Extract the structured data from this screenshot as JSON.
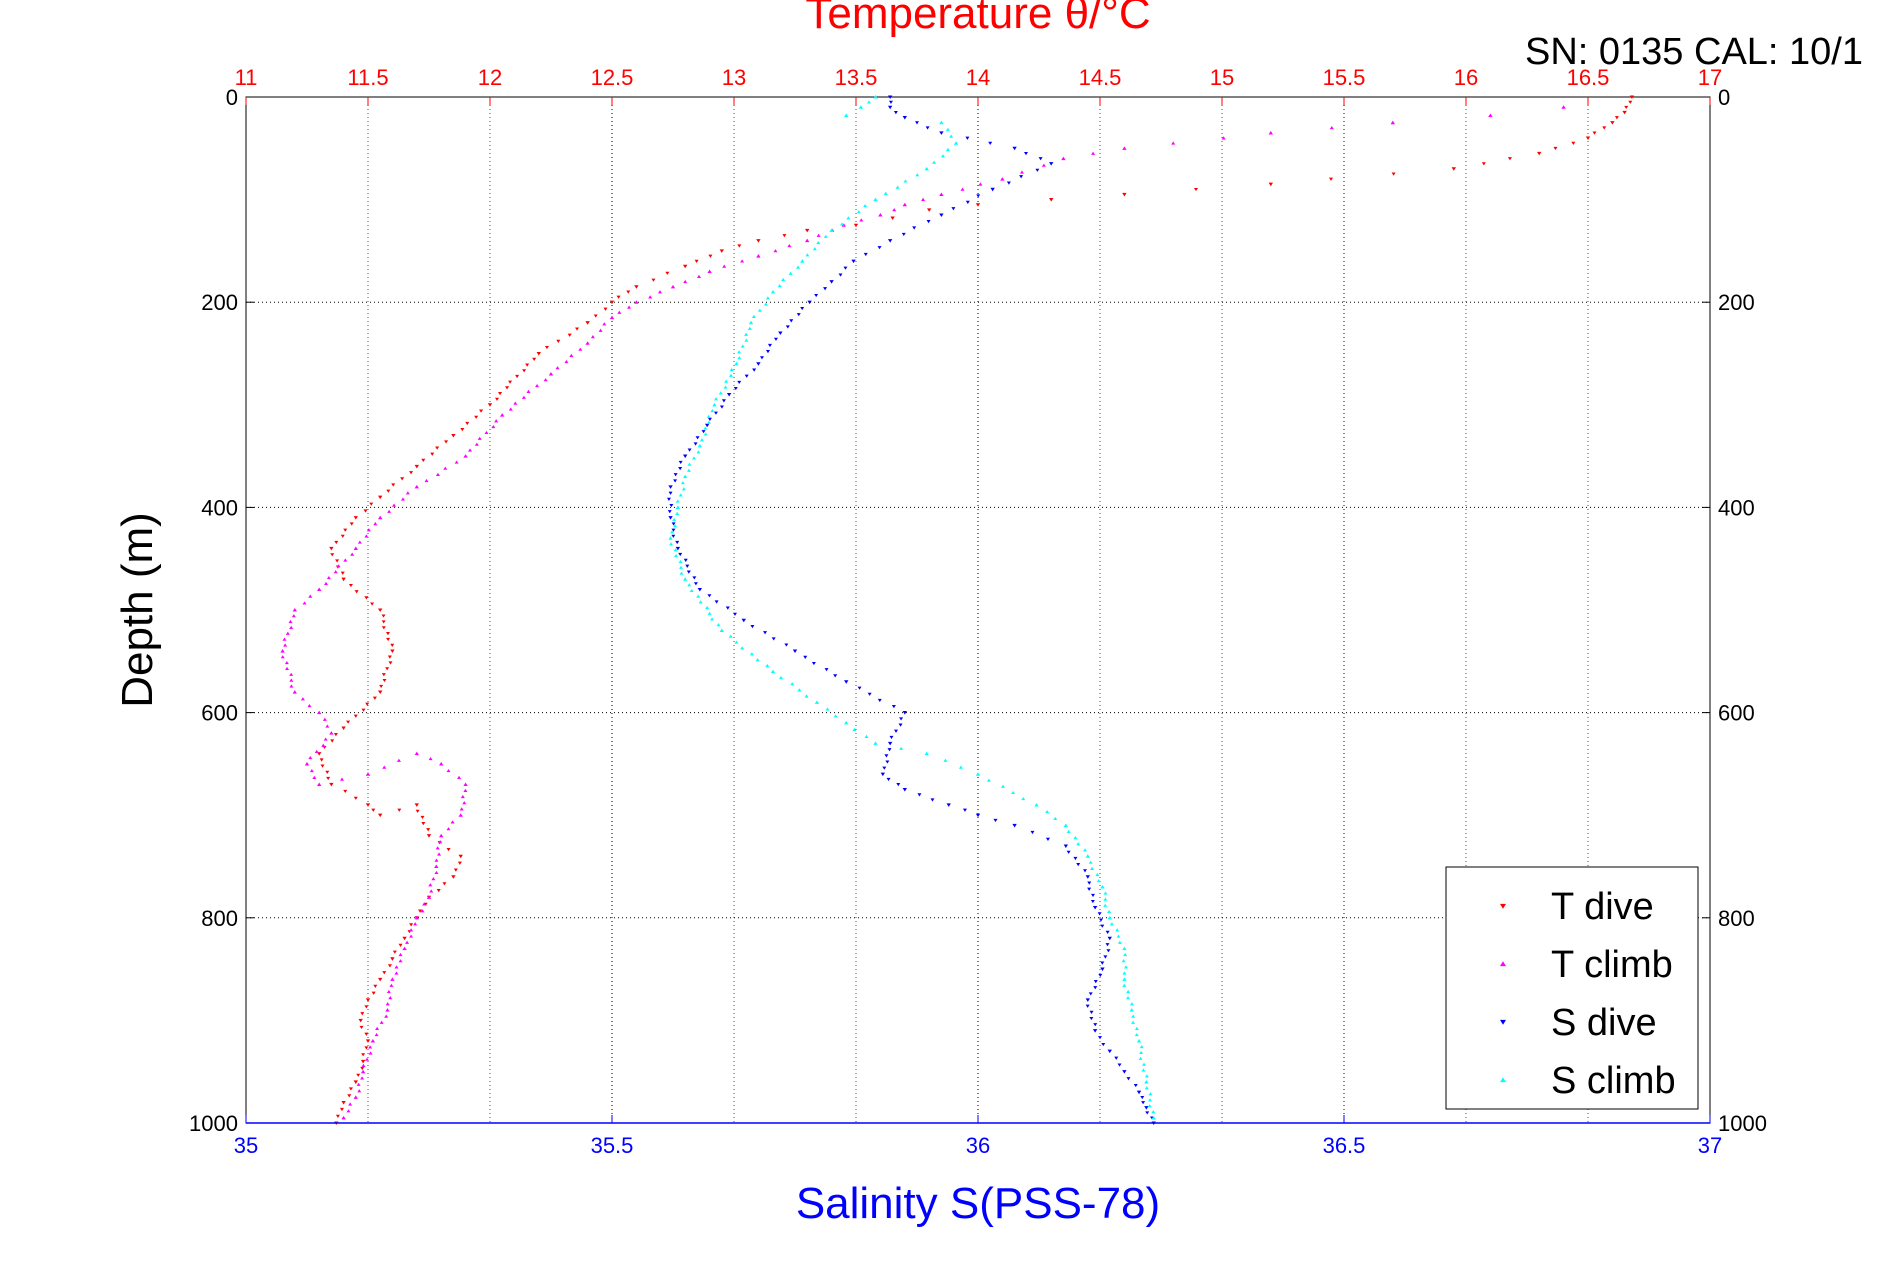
{
  "chart_data": {
    "type": "scatter",
    "title": "Temperature θ/°C",
    "serial_text": "SN: 0135  CAL: 10/1",
    "ylabel": "Depth (m)",
    "xlabel_bottom": "Salinity S(PSS-78)",
    "xlabel_top": "Temperature θ/°C",
    "ylim": [
      0,
      1000
    ],
    "y_reversed": true,
    "x_bottom_lim": [
      35,
      37
    ],
    "x_top_lim": [
      11,
      17
    ],
    "grid": true,
    "legend_position": "bottom-right",
    "colors": {
      "top_axis": "#ff0000",
      "bottom_axis": "#0000ff",
      "t_dive": "#ff0000",
      "t_climb": "#ff00ff",
      "s_dive": "#0000ff",
      "s_climb": "#00ffff",
      "grid_top": "#ff0000",
      "grid_other": "#000000"
    },
    "y_ticks": [
      "0",
      "200",
      "400",
      "600",
      "800",
      "1000"
    ],
    "bottom_ticks": [
      "35",
      "35.5",
      "36",
      "36.5",
      "37"
    ],
    "top_ticks": [
      "11",
      "11.5",
      "12",
      "12.5",
      "13",
      "13.5",
      "14",
      "14.5",
      "15",
      "15.5",
      "16",
      "16.5",
      "17"
    ],
    "legend": [
      "T dive",
      "T climb",
      "S dive",
      "S climb"
    ],
    "series": [
      {
        "name": "T dive",
        "axis": "top",
        "marker": "triangle-down",
        "x": [
          16.68,
          16.65,
          16.6,
          16.5,
          16.3,
          15.95,
          15.2,
          14.6,
          14.3,
          14.0,
          13.8,
          13.65,
          13.5,
          13.3,
          13.1,
          12.95,
          12.8,
          12.6,
          12.5,
          12.4,
          12.2,
          12.0,
          11.85,
          11.7,
          11.55,
          11.45,
          11.35,
          11.4,
          11.55,
          11.6,
          11.55,
          11.4,
          11.3,
          11.35,
          11.5,
          11.55,
          11.7,
          11.75,
          11.88,
          11.85,
          11.75,
          11.7,
          11.65,
          11.6,
          11.55,
          11.5,
          11.47,
          11.5,
          11.48,
          11.45,
          11.4,
          11.37
        ],
        "y": [
          0,
          15,
          25,
          40,
          55,
          70,
          85,
          95,
          100,
          105,
          110,
          118,
          125,
          130,
          140,
          150,
          165,
          185,
          200,
          220,
          250,
          300,
          330,
          360,
          390,
          410,
          440,
          470,
          500,
          540,
          580,
          615,
          640,
          670,
          690,
          700,
          690,
          720,
          740,
          760,
          780,
          800,
          820,
          840,
          860,
          880,
          900,
          920,
          940,
          960,
          980,
          1000
        ]
      },
      {
        "name": "T climb",
        "axis": "top",
        "marker": "triangle-up",
        "x": [
          16.4,
          16.1,
          15.7,
          15.2,
          14.6,
          14.35,
          14.1,
          13.85,
          13.7,
          13.6,
          13.45,
          13.3,
          13.1,
          12.9,
          12.75,
          12.6,
          12.5,
          12.4,
          12.25,
          12.05,
          11.9,
          11.7,
          11.55,
          11.45,
          11.3,
          11.2,
          11.15,
          11.2,
          11.3,
          11.35,
          11.25,
          11.3,
          11.5,
          11.7,
          11.8,
          11.9,
          11.88,
          11.8,
          11.78,
          11.75,
          11.7,
          11.65,
          11.6,
          11.58,
          11.52,
          11.48,
          11.45,
          11.4
        ],
        "y": [
          10,
          18,
          25,
          35,
          50,
          60,
          80,
          95,
          105,
          115,
          125,
          140,
          155,
          170,
          185,
          200,
          215,
          240,
          270,
          310,
          350,
          380,
          410,
          440,
          480,
          500,
          540,
          580,
          600,
          620,
          650,
          670,
          660,
          640,
          650,
          670,
          700,
          720,
          750,
          780,
          800,
          830,
          860,
          890,
          920,
          950,
          975,
          995
        ]
      },
      {
        "name": "S dive",
        "axis": "bottom",
        "marker": "triangle-down",
        "x": [
          35.88,
          35.88,
          35.9,
          35.95,
          36.05,
          36.1,
          36.02,
          35.95,
          35.88,
          35.83,
          35.8,
          35.77,
          35.73,
          35.7,
          35.66,
          35.63,
          35.6,
          35.58,
          35.58,
          35.59,
          35.62,
          35.68,
          35.75,
          35.82,
          35.9,
          35.88,
          35.87,
          35.9,
          35.96,
          36.0,
          36.05,
          36.12,
          36.15,
          36.16,
          36.18,
          36.17,
          36.15,
          36.16,
          36.18,
          36.2,
          36.22,
          36.23,
          36.24
        ],
        "y": [
          0,
          10,
          20,
          35,
          50,
          65,
          90,
          115,
          140,
          160,
          180,
          200,
          230,
          260,
          290,
          320,
          350,
          380,
          410,
          440,
          480,
          510,
          540,
          570,
          600,
          630,
          660,
          675,
          690,
          700,
          710,
          730,
          760,
          790,
          820,
          850,
          880,
          910,
          930,
          950,
          970,
          985,
          1000
        ]
      },
      {
        "name": "S climb",
        "axis": "bottom",
        "marker": "triangle-up",
        "x": [
          35.86,
          35.84,
          35.82,
          35.95,
          35.97,
          35.93,
          35.86,
          35.8,
          35.76,
          35.72,
          35.69,
          35.67,
          35.64,
          35.62,
          35.6,
          35.59,
          35.58,
          35.6,
          35.65,
          35.72,
          35.78,
          35.82,
          35.86,
          35.93,
          36.0,
          36.08,
          36.12,
          36.15,
          36.17,
          36.18,
          36.2,
          36.2,
          36.21,
          36.22,
          36.23,
          36.24
        ],
        "y": [
          0,
          10,
          18,
          25,
          45,
          70,
          100,
          130,
          160,
          190,
          220,
          260,
          300,
          340,
          370,
          400,
          430,
          470,
          520,
          560,
          590,
          610,
          630,
          640,
          660,
          690,
          710,
          740,
          770,
          800,
          830,
          860,
          890,
          920,
          960,
          995
        ]
      }
    ]
  }
}
